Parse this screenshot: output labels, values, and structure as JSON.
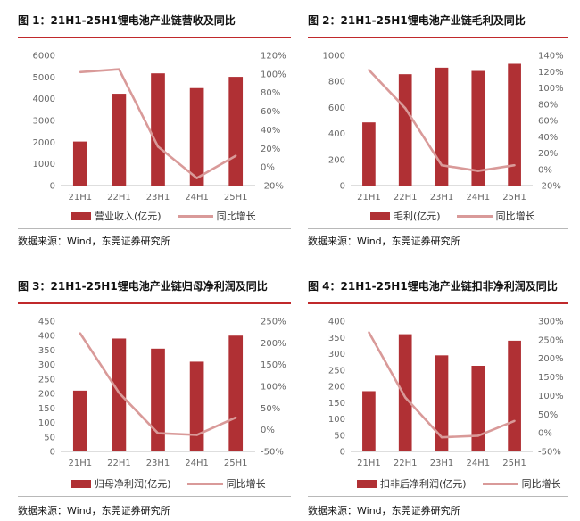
{
  "colors": {
    "bar": "#b03034",
    "line": "#d99a99",
    "rule": "#c0292b"
  },
  "charts": [
    {
      "title": "图 1：21H1-25H1锂电池产业链营收及同比",
      "bar_legend": "营业收入(亿元)",
      "line_legend": "同比增长",
      "source": "数据来源：Wind，东莞证券研究所"
    },
    {
      "title": "图 2：21H1-25H1锂电池产业链毛利及同比",
      "bar_legend": "毛利(亿元)",
      "line_legend": "同比增长",
      "source": "数据来源：Wind，东莞证券研究所"
    },
    {
      "title": "图 3：21H1-25H1锂电池产业链归母净利润及同比",
      "bar_legend": "归母净利润(亿元)",
      "line_legend": "同比增长",
      "source": "数据来源：Wind，东莞证券研究所"
    },
    {
      "title": "图 4：21H1-25H1锂电池产业链扣非净利润及同比",
      "bar_legend": "扣非后净利润(亿元)",
      "line_legend": "同比增长",
      "source": "数据来源：Wind，东莞证券研究所"
    }
  ],
  "chart_data": [
    {
      "type": "bar",
      "categories": [
        "21H1",
        "22H1",
        "23H1",
        "24H1",
        "25H1"
      ],
      "series": [
        {
          "name": "营业收入(亿元)",
          "type": "bar",
          "axis": "left",
          "values": [
            2030,
            4230,
            5170,
            4490,
            5010
          ]
        },
        {
          "name": "同比增长",
          "type": "line",
          "axis": "right",
          "values": [
            102,
            105,
            22,
            -12,
            12
          ]
        }
      ],
      "ylim_left": [
        0,
        6000
      ],
      "yticks_left": [
        0,
        1000,
        2000,
        3000,
        4000,
        5000,
        6000
      ],
      "ylim_right": [
        -20,
        120
      ],
      "yticks_right": [
        "-20%",
        "0%",
        "20%",
        "40%",
        "60%",
        "80%",
        "100%",
        "120%"
      ],
      "right_ticks": [
        -20,
        0,
        20,
        40,
        60,
        80,
        100,
        120
      ]
    },
    {
      "type": "bar",
      "categories": [
        "21H1",
        "22H1",
        "23H1",
        "24H1",
        "25H1"
      ],
      "series": [
        {
          "name": "毛利(亿元)",
          "type": "bar",
          "axis": "left",
          "values": [
            485,
            855,
            905,
            880,
            935
          ]
        },
        {
          "name": "同比增长",
          "type": "line",
          "axis": "right",
          "values": [
            122,
            75,
            5,
            -2,
            5
          ]
        }
      ],
      "ylim_left": [
        0,
        1000
      ],
      "yticks_left": [
        0,
        200,
        400,
        600,
        800,
        1000
      ],
      "ylim_right": [
        -20,
        140
      ],
      "yticks_right": [
        "-20%",
        "0%",
        "20%",
        "40%",
        "60%",
        "80%",
        "100%",
        "120%",
        "140%"
      ],
      "right_ticks": [
        -20,
        0,
        20,
        40,
        60,
        80,
        100,
        120,
        140
      ]
    },
    {
      "type": "bar",
      "categories": [
        "21H1",
        "22H1",
        "23H1",
        "24H1",
        "25H1"
      ],
      "series": [
        {
          "name": "归母净利润(亿元)",
          "type": "bar",
          "axis": "left",
          "values": [
            210,
            390,
            355,
            310,
            400
          ]
        },
        {
          "name": "同比增长",
          "type": "line",
          "axis": "right",
          "values": [
            222,
            85,
            -8,
            -12,
            28
          ]
        }
      ],
      "ylim_left": [
        0,
        450
      ],
      "yticks_left": [
        0,
        50,
        100,
        150,
        200,
        250,
        300,
        350,
        400,
        450
      ],
      "ylim_right": [
        -50,
        250
      ],
      "yticks_right": [
        "-50%",
        "0%",
        "50%",
        "100%",
        "150%",
        "200%",
        "250%"
      ],
      "right_ticks": [
        -50,
        0,
        50,
        100,
        150,
        200,
        250
      ]
    },
    {
      "type": "bar",
      "categories": [
        "21H1",
        "22H1",
        "23H1",
        "24H1",
        "25H1"
      ],
      "series": [
        {
          "name": "扣非后净利润(亿元)",
          "type": "bar",
          "axis": "left",
          "values": [
            185,
            360,
            295,
            263,
            340
          ]
        },
        {
          "name": "同比增长",
          "type": "line",
          "axis": "right",
          "values": [
            270,
            95,
            -12,
            -8,
            32
          ]
        }
      ],
      "ylim_left": [
        0,
        400
      ],
      "yticks_left": [
        0,
        50,
        100,
        150,
        200,
        250,
        300,
        350,
        400
      ],
      "ylim_right": [
        -50,
        300
      ],
      "yticks_right": [
        "-50%",
        "0%",
        "50%",
        "100%",
        "150%",
        "200%",
        "250%",
        "300%"
      ],
      "right_ticks": [
        -50,
        0,
        50,
        100,
        150,
        200,
        250,
        300
      ]
    }
  ]
}
